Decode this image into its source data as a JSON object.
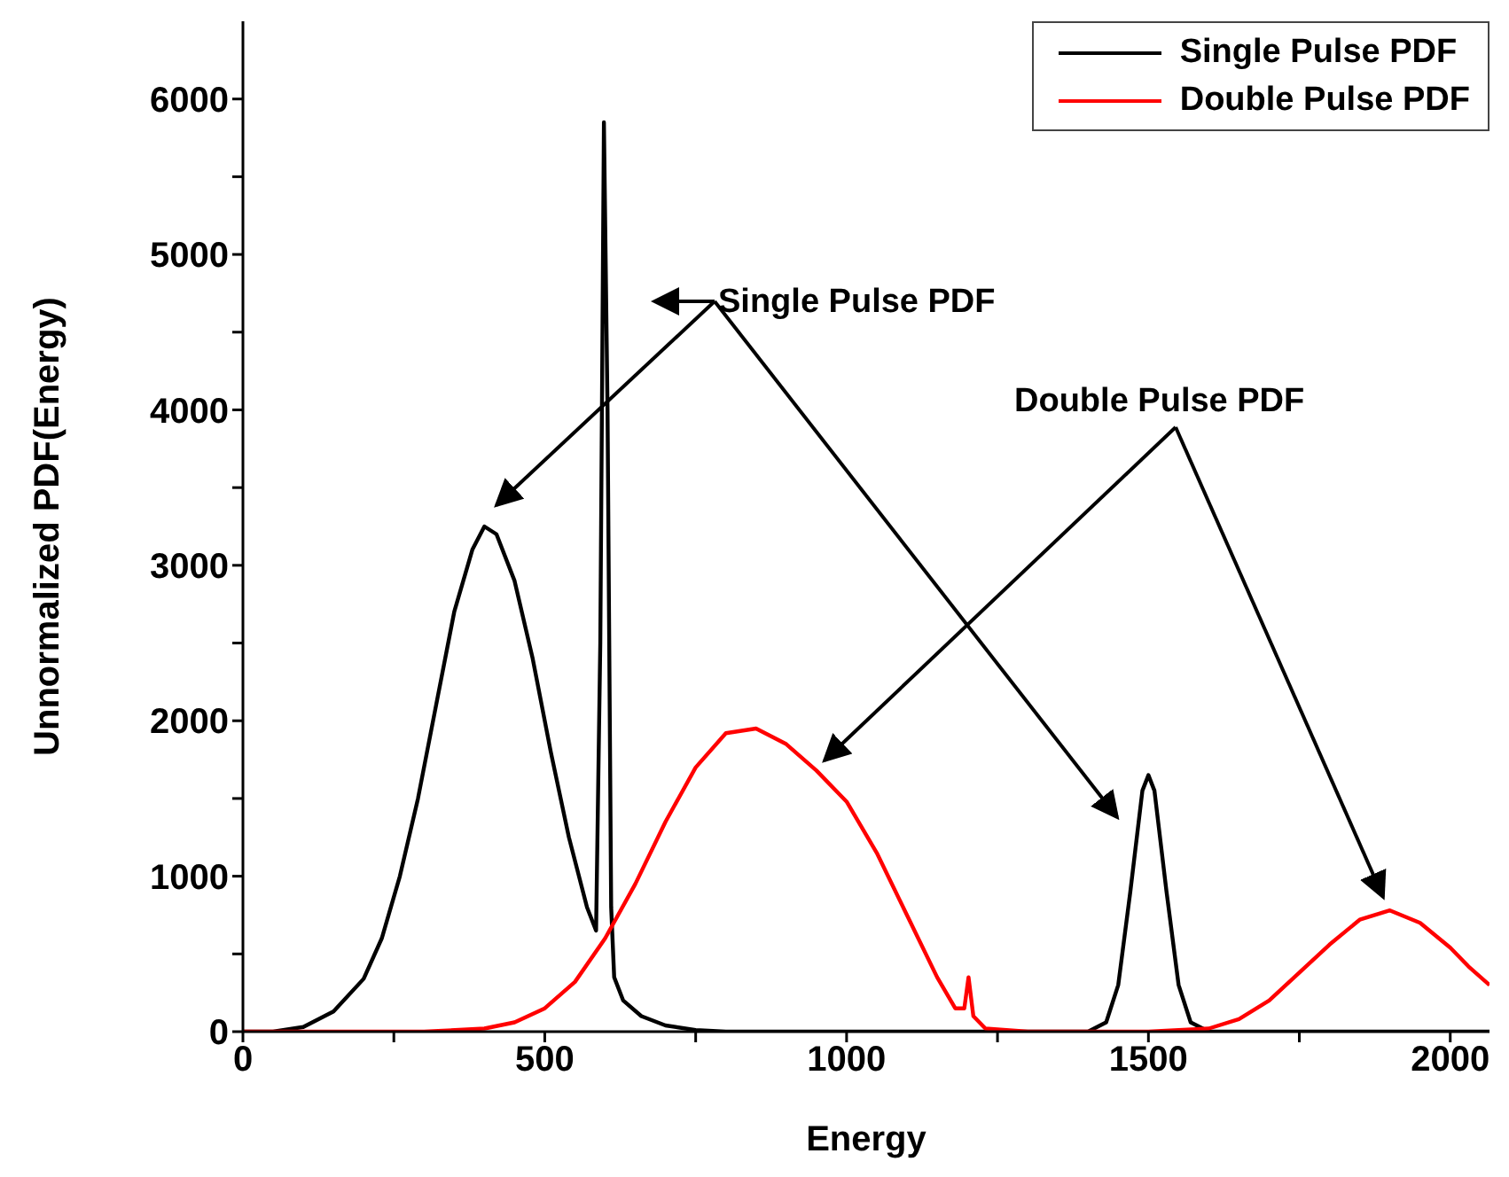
{
  "chart_data": {
    "type": "line",
    "xlabel": "Energy",
    "ylabel": "Unnormalized PDF(Energy)",
    "xlim": [
      0,
      2065
    ],
    "ylim": [
      0,
      6500
    ],
    "xticks": [
      0,
      {
        "value": 250,
        "label": null
      },
      500,
      {
        "value": 750,
        "label": null
      },
      1000,
      {
        "value": 1250,
        "label": null
      },
      1500,
      {
        "value": 1750,
        "label": null
      },
      2000
    ],
    "yticks": [
      0,
      {
        "value": 500,
        "label": null
      },
      1000,
      {
        "value": 1500,
        "label": null
      },
      2000,
      {
        "value": 2500,
        "label": null
      },
      3000,
      {
        "value": 3500,
        "label": null
      },
      4000,
      {
        "value": 4500,
        "label": null
      },
      5000,
      {
        "value": 5500,
        "label": null
      },
      6000
    ],
    "legend": "top right",
    "grid": false,
    "marker": "none",
    "line_style": "solid",
    "annotations": [
      "Single Pulse PDF",
      "Double Pulse PDF"
    ],
    "series": [
      {
        "name": "Single Pulse PDF",
        "color": "#000000",
        "x": [
          0,
          50,
          100,
          150,
          200,
          230,
          260,
          290,
          320,
          350,
          380,
          400,
          420,
          450,
          480,
          510,
          540,
          570,
          585,
          592,
          598,
          604,
          610,
          615,
          630,
          660,
          700,
          750,
          800,
          1400,
          1430,
          1450,
          1470,
          1490,
          1500,
          1510,
          1530,
          1550,
          1570,
          1600,
          2065
        ],
        "values": [
          0,
          0,
          30,
          130,
          340,
          600,
          1000,
          1500,
          2100,
          2700,
          3100,
          3250,
          3200,
          2900,
          2400,
          1800,
          1250,
          800,
          650,
          2500,
          5850,
          4000,
          800,
          350,
          200,
          100,
          40,
          10,
          0,
          0,
          60,
          300,
          900,
          1550,
          1650,
          1550,
          900,
          300,
          60,
          0,
          0
        ]
      },
      {
        "name": "Double Pulse PDF",
        "color": "#ff0000",
        "x": [
          0,
          300,
          400,
          450,
          500,
          550,
          600,
          650,
          700,
          750,
          800,
          850,
          900,
          950,
          1000,
          1050,
          1100,
          1150,
          1180,
          1195,
          1202,
          1210,
          1230,
          1300,
          1500,
          1600,
          1650,
          1700,
          1750,
          1800,
          1850,
          1900,
          1950,
          2000,
          2030,
          2065
        ],
        "values": [
          0,
          0,
          20,
          60,
          150,
          320,
          600,
          950,
          1350,
          1700,
          1920,
          1950,
          1850,
          1680,
          1480,
          1150,
          750,
          350,
          150,
          150,
          350,
          100,
          20,
          0,
          0,
          20,
          80,
          200,
          380,
          560,
          720,
          780,
          700,
          540,
          420,
          300
        ]
      }
    ]
  }
}
